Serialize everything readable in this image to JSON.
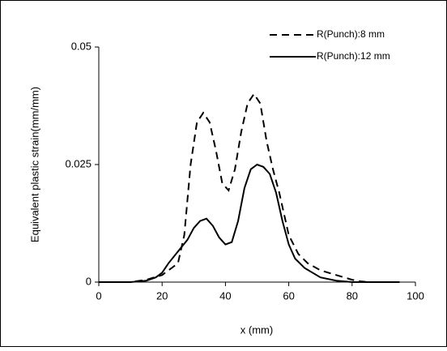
{
  "chart_data": {
    "type": "line",
    "xlabel": "x (mm)",
    "ylabel": "Equivalent plastic strain(mm/mm)",
    "xlim": [
      0,
      100
    ],
    "xticks": [
      0,
      20,
      40,
      60,
      80,
      100
    ],
    "ylim": [
      0,
      0.05
    ],
    "yticks": [
      0,
      0.025,
      0.05
    ],
    "legend": "upper right",
    "series": [
      {
        "name": "R(Punch):8 mm",
        "color": "#000000",
        "dash": "dashed",
        "x": [
          0,
          10,
          15,
          20,
          25,
          27,
          29,
          31,
          33,
          35,
          37,
          39,
          41,
          43,
          45,
          47,
          49,
          51,
          53,
          55,
          57,
          60,
          63,
          66,
          70,
          75,
          80,
          82,
          85,
          95
        ],
        "values": [
          0,
          0,
          0.0005,
          0.0015,
          0.004,
          0.01,
          0.025,
          0.034,
          0.036,
          0.034,
          0.028,
          0.021,
          0.0195,
          0.024,
          0.032,
          0.038,
          0.04,
          0.038,
          0.03,
          0.024,
          0.019,
          0.01,
          0.006,
          0.004,
          0.0025,
          0.0015,
          0.0005,
          0.0002,
          0,
          0
        ]
      },
      {
        "name": "R(Punch):12 mm",
        "color": "#000000",
        "dash": "solid",
        "x": [
          0,
          10,
          15,
          18,
          20,
          22,
          25,
          28,
          30,
          32,
          34,
          36,
          38,
          40,
          42,
          44,
          46,
          48,
          50,
          52,
          54,
          56,
          58,
          60,
          62,
          65,
          70,
          75,
          80,
          95
        ],
        "values": [
          0,
          0,
          0.0003,
          0.001,
          0.002,
          0.004,
          0.0065,
          0.009,
          0.0115,
          0.013,
          0.0135,
          0.012,
          0.0095,
          0.008,
          0.0085,
          0.013,
          0.02,
          0.024,
          0.025,
          0.0245,
          0.023,
          0.019,
          0.013,
          0.008,
          0.005,
          0.003,
          0.001,
          0.0003,
          0,
          0
        ]
      }
    ]
  }
}
